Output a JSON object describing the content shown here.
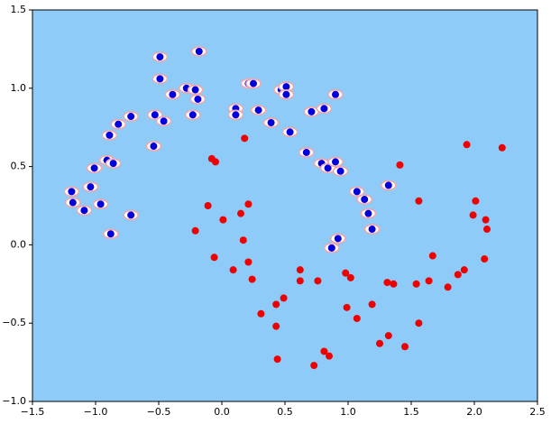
{
  "chart_data": {
    "type": "scatter",
    "background": "#8fcbf9",
    "xlim": [
      -1.5,
      2.5
    ],
    "ylim": [
      -1,
      1.5
    ],
    "xticks": [
      {
        "value": -1.5,
        "label": "−1.5"
      },
      {
        "value": -1,
        "label": "−1.0"
      },
      {
        "value": -0.5,
        "label": "−0.5"
      },
      {
        "value": 0,
        "label": "0.0"
      },
      0.5,
      {
        "value": 1,
        "label": "1.0"
      },
      1.5,
      {
        "value": 2,
        "label": "2.0"
      },
      2.5
    ],
    "yticks": [
      {
        "value": -1,
        "label": "−1.0"
      },
      {
        "value": -0.5,
        "label": "−0.5"
      },
      {
        "value": 0,
        "label": "0.0"
      },
      0.5,
      {
        "value": 1,
        "label": "1.0"
      },
      1.5
    ],
    "series": [
      {
        "color": "#0000dd",
        "x": [
          -0.49,
          -0.18,
          -0.49,
          -0.39,
          -0.28,
          -0.21,
          -0.19,
          -0.23,
          0.21,
          0.25,
          0.11,
          0.11,
          0.29,
          0.39,
          0.47,
          0.51,
          0.51,
          0.54,
          0.71,
          0.81,
          0.9,
          0.67,
          -0.82,
          -0.72,
          -0.89,
          -0.53,
          -0.46,
          -0.54,
          0.79,
          0.84,
          0.9,
          0.94,
          -1.01,
          -0.91,
          -0.86,
          -1.04,
          -1.19,
          -1.18,
          -1.09,
          -0.96,
          -0.72,
          -0.88,
          1.07,
          1.13,
          1.16,
          1.19,
          1.32,
          0.92,
          0.87
        ],
        "values": [
          1.2,
          1.235,
          1.06,
          0.96,
          1.0,
          0.99,
          0.93,
          0.83,
          1.03,
          1.03,
          0.87,
          0.83,
          0.86,
          0.78,
          0.99,
          1.01,
          0.96,
          0.72,
          0.85,
          0.87,
          0.96,
          0.59,
          0.77,
          0.82,
          0.7,
          0.83,
          0.79,
          0.63,
          0.52,
          0.49,
          0.53,
          0.47,
          0.49,
          0.54,
          0.52,
          0.37,
          0.34,
          0.27,
          0.22,
          0.26,
          0.19,
          0.07,
          0.34,
          0.29,
          0.2,
          0.1,
          0.38,
          0.04,
          -0.02
        ]
      },
      {
        "color": "#ee0000",
        "x": [
          -0.08,
          -0.05,
          0.18,
          1.41,
          -0.11,
          0.21,
          0.01,
          0.15,
          -0.21,
          0.17,
          -0.06,
          0.21,
          0.09,
          0.24,
          0.62,
          0.62,
          0.76,
          0.49,
          0.43,
          0.31,
          0.43,
          0.44,
          0.73,
          0.81,
          0.85,
          0.98,
          1.02,
          0.99,
          1.07,
          1.19,
          1.25,
          1.32,
          1.31,
          1.36,
          1.45,
          1.54,
          1.56,
          1.56,
          1.64,
          1.67,
          1.79,
          1.87,
          1.92,
          1.94,
          1.99,
          2.01,
          2.09,
          2.1,
          2.08,
          2.22
        ],
        "values": [
          0.55,
          0.53,
          0.68,
          0.51,
          0.25,
          0.26,
          0.16,
          0.2,
          0.09,
          0.03,
          -0.08,
          -0.11,
          -0.16,
          -0.22,
          -0.23,
          -0.16,
          -0.23,
          -0.34,
          -0.38,
          -0.44,
          -0.52,
          -0.73,
          -0.77,
          -0.68,
          -0.71,
          -0.18,
          -0.21,
          -0.4,
          -0.47,
          -0.38,
          -0.63,
          -0.58,
          -0.24,
          -0.25,
          -0.65,
          -0.25,
          -0.5,
          0.28,
          -0.23,
          -0.07,
          -0.27,
          -0.19,
          -0.16,
          0.64,
          0.19,
          0.28,
          0.16,
          0.1,
          -0.09,
          0.62
        ]
      }
    ]
  }
}
